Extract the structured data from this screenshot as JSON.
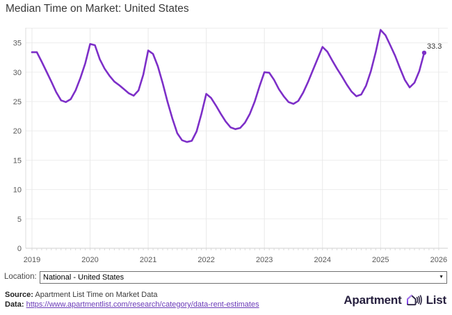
{
  "header": {
    "title": "Median Time on Market: United States"
  },
  "location_bar": {
    "label": "Location:",
    "selected": "National - United States",
    "dropdown_arrow_icon": "caret-down"
  },
  "footer": {
    "source_prefix": "Source:",
    "source_text": "Apartment List Time on Market Data",
    "data_prefix": "Data:",
    "data_link": "https://www.apartmentlist.com/research/category/data-rent-estimates",
    "logo": {
      "word1": "Apartment",
      "word2": "List",
      "icon": "apartment-list-house-waves-icon"
    }
  },
  "colors": {
    "line": "#7d2fc8",
    "link": "#6a3ab8",
    "logo": "#27203f",
    "title_text": "#3a3a3a",
    "axis_text": "#595959",
    "gridline": "#ededed",
    "end_label_text": "#333333"
  },
  "chart_data": {
    "type": "line",
    "title": "Median Time on Market: United States",
    "xlabel": "",
    "ylabel": "",
    "unit": "days",
    "x_start": "2019-01",
    "x_end": "2025-10",
    "x_tick_labels": [
      "2019",
      "2020",
      "2021",
      "2022",
      "2023",
      "2024",
      "2025",
      "2026"
    ],
    "y_ticks": [
      0,
      5,
      10,
      15,
      20,
      25,
      30,
      35
    ],
    "ylim": [
      0,
      37.5
    ],
    "grid": true,
    "legend_position": "none",
    "end_label": "33.3",
    "series": [
      {
        "name": "National - United States",
        "color": "#7d2fc8",
        "start_year": 2019,
        "start_month": 1,
        "values": [
          33.4,
          33.4,
          31.8,
          30.1,
          28.4,
          26.6,
          25.2,
          24.9,
          25.4,
          26.9,
          29.0,
          31.5,
          34.8,
          34.6,
          32.2,
          30.6,
          29.4,
          28.4,
          27.8,
          27.1,
          26.4,
          26.0,
          26.9,
          29.6,
          33.7,
          33.1,
          31.0,
          28.1,
          24.9,
          22.1,
          19.6,
          18.4,
          18.1,
          18.3,
          19.9,
          22.9,
          26.3,
          25.6,
          24.3,
          22.9,
          21.6,
          20.6,
          20.3,
          20.5,
          21.4,
          22.9,
          25.0,
          27.6,
          30.0,
          29.9,
          28.7,
          27.1,
          25.9,
          24.9,
          24.6,
          25.1,
          26.5,
          28.3,
          30.3,
          32.3,
          34.3,
          33.5,
          32.0,
          30.6,
          29.3,
          27.9,
          26.7,
          25.9,
          26.2,
          27.7,
          30.2,
          33.4,
          37.2,
          36.3,
          34.6,
          32.8,
          30.7,
          28.7,
          27.4,
          28.2,
          30.2,
          33.3
        ]
      }
    ]
  }
}
